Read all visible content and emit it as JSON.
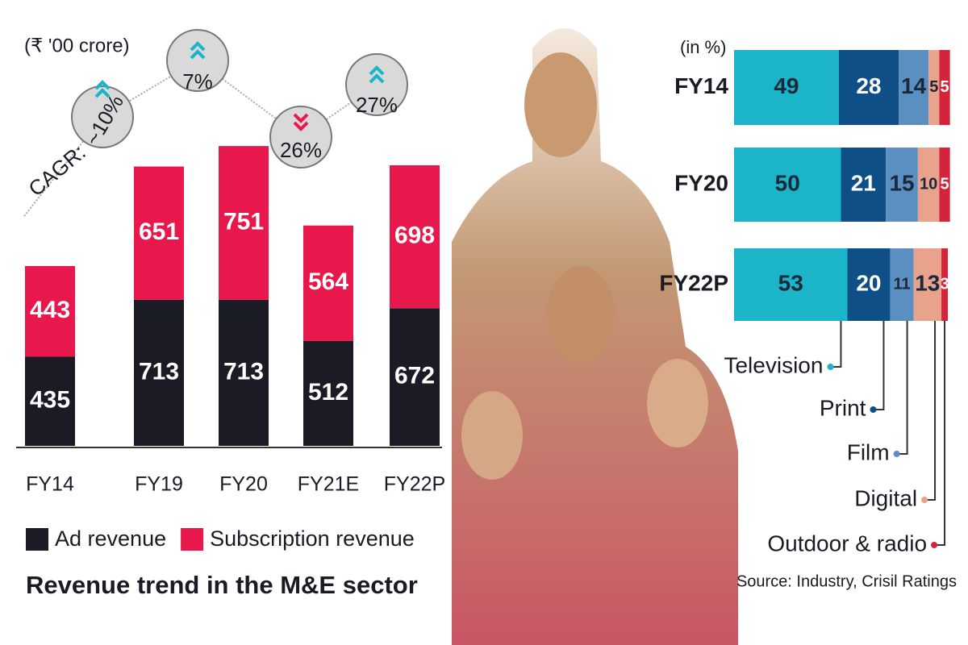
{
  "chart_data": [
    {
      "type": "bar",
      "stacked": true,
      "unit_label": "(₹ '00 crore)",
      "title": "Revenue trend in the M&E sector",
      "categories": [
        "FY14",
        "FY19",
        "FY20",
        "FY21E",
        "FY22P"
      ],
      "series": [
        {
          "name": "Ad revenue",
          "color": "#1b1b26",
          "values": [
            435,
            713,
            713,
            512,
            672
          ]
        },
        {
          "name": "Subscription revenue",
          "color": "#e8184c",
          "values": [
            443,
            651,
            751,
            564,
            698
          ]
        }
      ],
      "annotations": {
        "label": "CAGR:",
        "values": [
          "~10%",
          "7%",
          "26%",
          "27%"
        ]
      }
    },
    {
      "type": "bar",
      "orientation": "horizontal",
      "stacked": true,
      "unit_label": "(in %)",
      "categories": [
        "FY14",
        "FY20",
        "FY22P"
      ],
      "series": [
        {
          "name": "Television",
          "color": "#1bb4c9",
          "values": [
            49,
            50,
            53
          ]
        },
        {
          "name": "Print",
          "color": "#0f4f87",
          "values": [
            28,
            21,
            20
          ]
        },
        {
          "name": "Film",
          "color": "#5b8fc1",
          "values": [
            14,
            15,
            11
          ]
        },
        {
          "name": "Digital",
          "color": "#e9a28c",
          "values": [
            5,
            10,
            13
          ]
        },
        {
          "name": "Outdoor & radio",
          "color": "#d5233b",
          "values": [
            5,
            5,
            3
          ]
        }
      ],
      "source": "Source: Industry, Crisil Ratings"
    }
  ]
}
